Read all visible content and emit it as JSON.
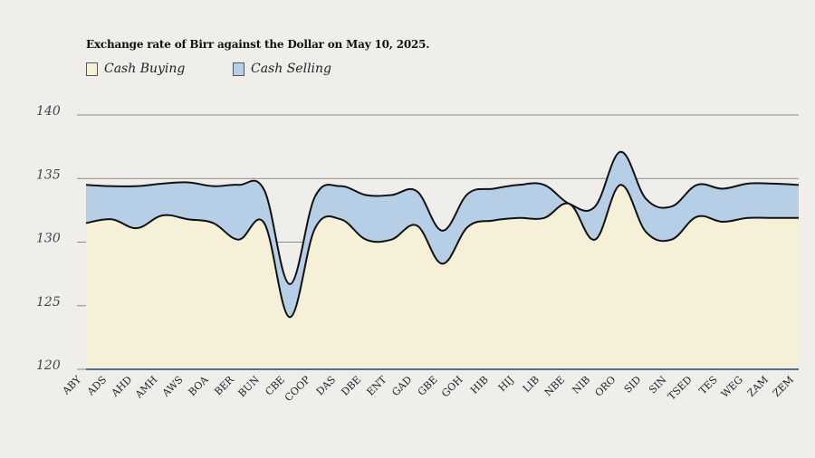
{
  "chart_data": {
    "type": "area",
    "title": "Exchange rate of Birr against the Dollar on May 10, 2025.",
    "xlabel": "",
    "ylabel": "",
    "ylim": [
      120,
      140
    ],
    "yticks": [
      120,
      125,
      130,
      135,
      140
    ],
    "grid": "horizontal",
    "legend_position": "top-left",
    "categories": [
      "ABY",
      "ADS",
      "AHD",
      "AMH",
      "AWS",
      "BOA",
      "BER",
      "BUN",
      "CBE",
      "COOP",
      "DAS",
      "DBE",
      "ENT",
      "GAD",
      "GBE",
      "GOH",
      "HIB",
      "HIJ",
      "LIB",
      "NBE",
      "NIB",
      "ORO",
      "SID",
      "SIN",
      "TSED",
      "TES",
      "WEG",
      "ZAM",
      "ZEM"
    ],
    "series": [
      {
        "name": "Cash Buying",
        "color": "#f5f0d7",
        "values": [
          131.5,
          131.8,
          131.1,
          132.1,
          131.8,
          131.5,
          130.2,
          131.5,
          124.1,
          131.1,
          131.8,
          130.2,
          130.2,
          131.3,
          128.3,
          131.2,
          131.7,
          131.9,
          131.9,
          133.0,
          130.2,
          134.5,
          130.8,
          130.2,
          132.0,
          131.6,
          131.9,
          131.9,
          131.9
        ]
      },
      {
        "name": "Cash Selling",
        "color": "#b7cfe6",
        "values": [
          134.5,
          134.4,
          134.4,
          134.6,
          134.7,
          134.4,
          134.5,
          134.1,
          126.7,
          133.6,
          134.4,
          133.7,
          133.7,
          134.0,
          130.9,
          133.8,
          134.2,
          134.5,
          134.5,
          133.0,
          132.8,
          137.1,
          133.4,
          132.8,
          134.5,
          134.2,
          134.6,
          134.6,
          134.5
        ]
      }
    ]
  }
}
